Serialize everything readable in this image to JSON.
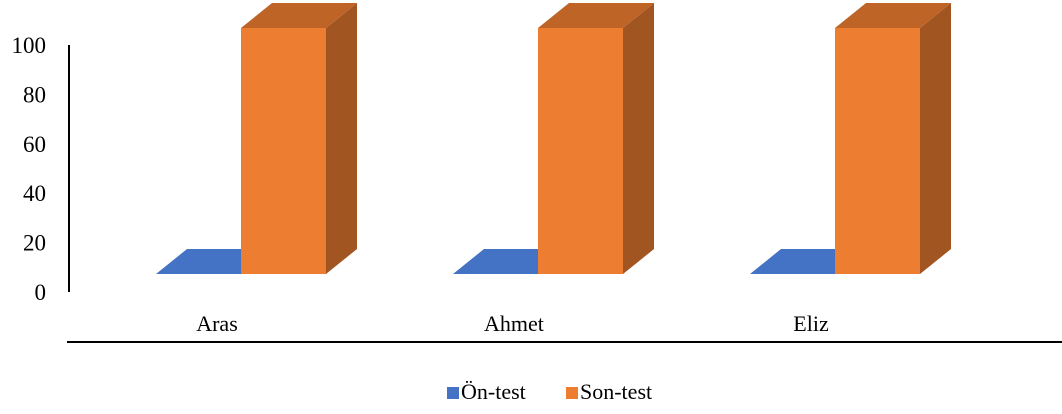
{
  "chart_data": {
    "type": "bar",
    "style": "3d-column",
    "categories": [
      "Aras",
      "Ahmet",
      "Eliz"
    ],
    "series": [
      {
        "name": "Ön-test",
        "values": [
          0,
          0,
          0
        ],
        "color": "#4472C4"
      },
      {
        "name": "Son-test",
        "values": [
          100,
          100,
          100
        ],
        "color": "#ED7D31"
      }
    ],
    "yticks": [
      0,
      20,
      40,
      60,
      80,
      100
    ],
    "ylim": [
      0,
      100
    ],
    "grid": false,
    "legend": "bottom-center",
    "title": "",
    "xlabel": "",
    "ylabel": ""
  }
}
